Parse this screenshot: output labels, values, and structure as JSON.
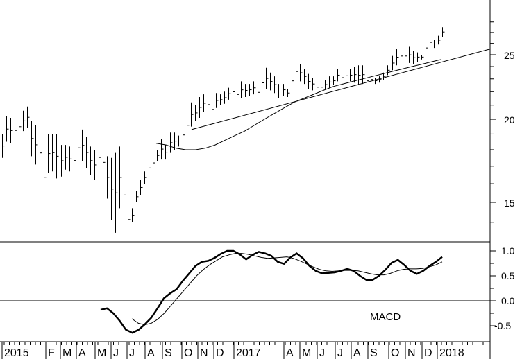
{
  "chart_data": [
    {
      "type": "ohlc",
      "panel": "price",
      "scale": "log",
      "ylim": [
        13,
        29
      ],
      "yticks": [
        15,
        20,
        25
      ],
      "x_periods": 142,
      "series": [
        {
          "name": "",
          "type": "weekly_range_bars",
          "values": {
            "high": [
              19.0,
              20.2,
              20.1,
              19.9,
              20.1,
              20.6,
              20.9,
              19.9,
              19.6,
              19.2,
              17.5,
              19.0,
              19.0,
              19.0,
              18.3,
              18.3,
              18.2,
              18.0,
              19.2,
              19.3,
              18.8,
              18.2,
              18.0,
              18.5,
              18.2,
              17.6,
              17.5,
              17.8,
              18.2,
              16.0,
              14.8,
              14.7,
              15.6,
              16.2,
              16.7,
              17.2,
              17.6,
              18.0,
              18.7,
              18.3,
              19.1,
              19.1,
              18.9,
              19.5,
              20.3,
              21.2,
              21.0,
              21.6,
              21.8,
              21.7,
              21.2,
              21.9,
              21.8,
              22.0,
              22.3,
              22.7,
              22.5,
              22.8,
              22.6,
              22.6,
              22.8,
              22.3,
              23.5,
              23.9,
              23.5,
              23.2,
              22.6,
              22.6,
              22.2,
              23.5,
              24.3,
              24.2,
              23.8,
              23.4,
              23.1,
              22.8,
              22.7,
              22.9,
              23.2,
              23.2,
              23.8,
              23.5,
              23.7,
              23.8,
              24.0,
              24.1,
              24.1,
              23.4,
              23.3,
              23.1,
              23.2,
              23.5,
              24.1,
              24.9,
              25.5,
              25.6,
              25.5,
              25.7,
              25.3,
              25.2,
              25.0,
              25.9,
              26.5,
              26.3,
              26.7,
              27.5
            ],
            "low": [
              17.5,
              18.5,
              18.4,
              18.6,
              18.9,
              19.2,
              19.4,
              17.6,
              17.1,
              16.5,
              15.3,
              16.6,
              16.7,
              16.3,
              16.4,
              16.8,
              16.7,
              16.7,
              17.1,
              17.3,
              16.9,
              16.5,
              16.2,
              16.6,
              16.3,
              15.2,
              14.1,
              13.5,
              14.7,
              14.8,
              13.5,
              14.0,
              15.0,
              15.4,
              16.0,
              16.6,
              16.8,
              17.3,
              17.4,
              17.4,
              17.8,
              18.0,
              18.2,
              18.4,
              18.9,
              19.5,
              19.9,
              20.1,
              20.5,
              20.4,
              20.2,
              20.8,
              21.0,
              21.1,
              21.4,
              21.3,
              21.1,
              21.5,
              21.6,
              21.7,
              21.8,
              21.6,
              21.9,
              22.2,
              22.1,
              21.9,
              21.5,
              21.7,
              21.6,
              22.2,
              22.9,
              22.8,
              22.6,
              22.2,
              22.1,
              21.9,
              22.0,
              22.2,
              22.3,
              22.5,
              22.8,
              22.7,
              22.8,
              22.8,
              22.7,
              22.5,
              22.6,
              22.3,
              22.6,
              22.6,
              22.7,
              22.9,
              23.3,
              23.7,
              24.1,
              24.2,
              24.3,
              24.3,
              24.2,
              24.4,
              24.6,
              25.3,
              25.7,
              25.6,
              25.9,
              26.6
            ]
          }
        },
        {
          "name": "",
          "type": "moving_average",
          "values": [
            18.4,
            18.3,
            18.1,
            18.0,
            18.0,
            18.1,
            18.3,
            18.6,
            18.9,
            19.2,
            19.6,
            20.0,
            20.4,
            20.8,
            21.2,
            21.5,
            21.8,
            22.1,
            22.4,
            22.6,
            22.8,
            23.0,
            23.2,
            23.4,
            23.6,
            23.8,
            24.0,
            24.2,
            24.4,
            24.6
          ]
        },
        {
          "name": "",
          "type": "trendline",
          "points": [
            [
              55,
              19.3
            ],
            [
              142,
              25.5
            ]
          ]
        }
      ]
    },
    {
      "type": "line",
      "panel": "indicator",
      "title": "MACD",
      "ylim": [
        -0.8,
        1.2
      ],
      "yticks": [
        -0.5,
        0.0,
        0.5,
        1.0
      ],
      "zero_line": true,
      "x_periods": 142,
      "series": [
        {
          "name": "MACD",
          "values": [
            -0.18,
            -0.15,
            -0.25,
            -0.4,
            -0.58,
            -0.64,
            -0.58,
            -0.47,
            -0.34,
            -0.15,
            0.05,
            0.15,
            0.23,
            0.4,
            0.55,
            0.7,
            0.78,
            0.8,
            0.86,
            0.94,
            1.0,
            1.0,
            0.93,
            0.83,
            0.92,
            0.98,
            0.95,
            0.9,
            0.78,
            0.74,
            0.87,
            0.95,
            0.85,
            0.7,
            0.6,
            0.55,
            0.56,
            0.57,
            0.6,
            0.64,
            0.6,
            0.5,
            0.42,
            0.42,
            0.5,
            0.62,
            0.76,
            0.82,
            0.72,
            0.6,
            0.54,
            0.6,
            0.7,
            0.78,
            0.88
          ]
        },
        {
          "name": "Signal",
          "values": [
            -0.36,
            -0.45,
            -0.48,
            -0.45,
            -0.37,
            -0.25,
            -0.1,
            0.05,
            0.2,
            0.35,
            0.5,
            0.62,
            0.72,
            0.8,
            0.88,
            0.92,
            0.95,
            0.95,
            0.93,
            0.9,
            0.87,
            0.85,
            0.86,
            0.87,
            0.88,
            0.85,
            0.8,
            0.74,
            0.68,
            0.63,
            0.6,
            0.59,
            0.6,
            0.61,
            0.61,
            0.6,
            0.57,
            0.54,
            0.52,
            0.52,
            0.55,
            0.6,
            0.63,
            0.64,
            0.64,
            0.65,
            0.68,
            0.72,
            0.78
          ]
        }
      ]
    }
  ],
  "x_axis": {
    "labels": [
      "2015",
      "F",
      "M",
      "A",
      "M",
      "J",
      "J",
      "A",
      "S",
      "O",
      "N",
      "D",
      "2017",
      "A",
      "M",
      "J",
      "J",
      "A",
      "S",
      "O",
      "N",
      "D",
      "2018"
    ]
  },
  "macd_label": "MACD"
}
